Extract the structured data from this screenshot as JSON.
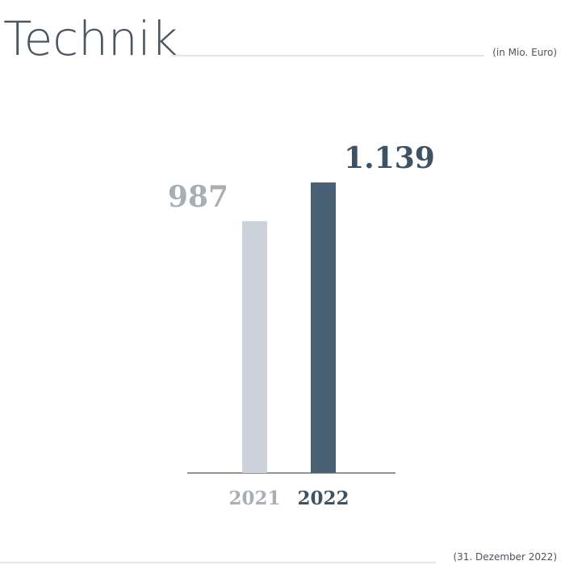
{
  "chart_data": {
    "type": "bar",
    "title": "Technik",
    "subtitle": "(in Mio. Euro)",
    "footnote": "(31. Dezember 2022)",
    "categories": [
      "2021",
      "2022"
    ],
    "values": [
      987,
      1139
    ],
    "value_labels": [
      "987",
      "1.139"
    ],
    "colors": [
      "#cbd2d9",
      "#4a6075"
    ]
  }
}
